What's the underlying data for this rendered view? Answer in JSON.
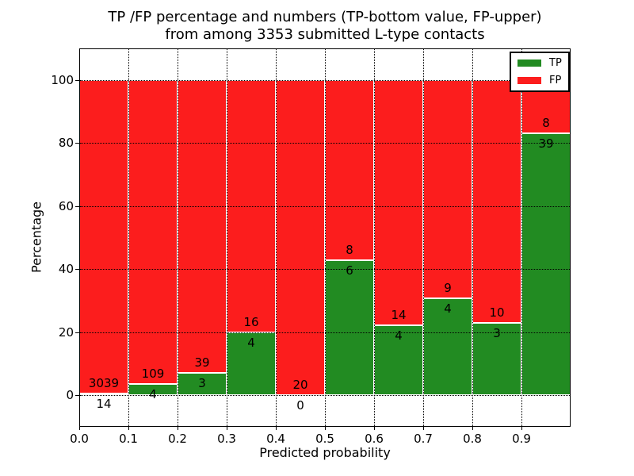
{
  "title": {
    "line1": "TP /FP percentage and numbers (TP-bottom value, FP-upper)",
    "line2": "from among 3353 submitted L-type contacts"
  },
  "chart_data": {
    "type": "bar",
    "stacked": true,
    "title": "TP /FP percentage and numbers (TP-bottom value, FP-upper) from among 3353 submitted L-type contacts",
    "xlabel": "Predicted probability",
    "ylabel": "Percentage",
    "xlim": [
      0.0,
      1.0
    ],
    "ylim": [
      -10,
      110
    ],
    "bin_width": 0.1,
    "total_contacts": 3353,
    "categories": [
      0.0,
      0.1,
      0.2,
      0.3,
      0.4,
      0.5,
      0.6,
      0.7,
      0.8,
      0.9
    ],
    "series": [
      {
        "name": "TP",
        "color": "#228B22",
        "counts": [
          14,
          4,
          3,
          4,
          0,
          6,
          4,
          4,
          3,
          39
        ]
      },
      {
        "name": "FP",
        "color": "#FC1D1D",
        "counts": [
          3039,
          109,
          39,
          16,
          20,
          8,
          14,
          9,
          10,
          8
        ]
      }
    ],
    "tp_percent_of_bin": [
      0.46,
      3.54,
      7.14,
      20.0,
      0.0,
      42.86,
      22.22,
      30.77,
      23.08,
      82.98
    ],
    "bar_total_percent": 100,
    "xticks": [
      {
        "label": "0.0",
        "value": 0.0
      },
      {
        "label": "0.1",
        "value": 0.1
      },
      {
        "label": "0.2",
        "value": 0.2
      },
      {
        "label": "0.3",
        "value": 0.3
      },
      {
        "label": "0.4",
        "value": 0.4
      },
      {
        "label": "0.5",
        "value": 0.5
      },
      {
        "label": "0.6",
        "value": 0.6
      },
      {
        "label": "0.7",
        "value": 0.7
      },
      {
        "label": "0.8",
        "value": 0.8
      },
      {
        "label": "0.9",
        "value": 0.9
      }
    ],
    "yticks": [
      {
        "label": "0",
        "value": 0
      },
      {
        "label": "20",
        "value": 20
      },
      {
        "label": "40",
        "value": 40
      },
      {
        "label": "60",
        "value": 60
      },
      {
        "label": "80",
        "value": 80
      },
      {
        "label": "100",
        "value": 100
      }
    ],
    "grid": {
      "visible": true,
      "style": "dotted",
      "color": "#000000"
    },
    "annotation_scheme": "TP count printed below segment boundary, FP count printed above boundary",
    "legend_position": "upper right"
  },
  "legend": {
    "items": [
      {
        "label": "TP",
        "color": "#228B22"
      },
      {
        "label": "FP",
        "color": "#FC1D1D"
      }
    ]
  },
  "colors": {
    "tp": "#228B22",
    "fp": "#FC1D1D",
    "background": "#FFFFFF",
    "text": "#000000",
    "bar_edge": "#FFFFFF",
    "grid": "#000000"
  }
}
